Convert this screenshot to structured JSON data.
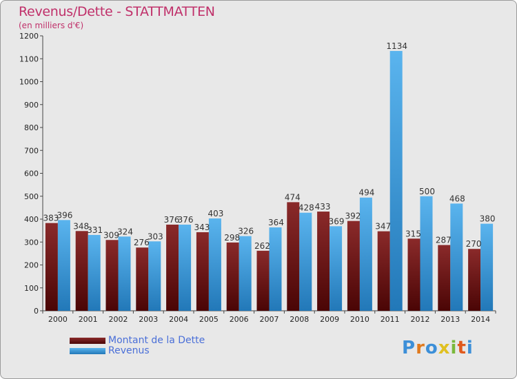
{
  "title": "Revenus/Dette - STATTMATTEN",
  "subtitle": "(en milliers d'€)",
  "logo_text": "Proxiti",
  "legend": [
    {
      "label": "Montant de la Dette",
      "color": "#7a1a1a"
    },
    {
      "label": "Revenus",
      "color": "#3c9ad8"
    }
  ],
  "chart_data": {
    "type": "bar",
    "title": "Revenus/Dette - STATTMATTEN",
    "ylabel": "(en milliers d'€)",
    "xlabel": "",
    "categories": [
      "2000",
      "2001",
      "2002",
      "2003",
      "2004",
      "2005",
      "2006",
      "2007",
      "2008",
      "2009",
      "2010",
      "2011",
      "2012",
      "2013",
      "2014"
    ],
    "series": [
      {
        "name": "Montant de la Dette",
        "color": "#7a1a1a",
        "values": [
          383,
          348,
          309,
          276,
          376,
          343,
          298,
          262,
          474,
          433,
          392,
          347,
          315,
          287,
          270
        ]
      },
      {
        "name": "Revenus",
        "color": "#3c9ad8",
        "values": [
          396,
          331,
          324,
          303,
          376,
          403,
          326,
          364,
          428,
          369,
          494,
          1134,
          500,
          468,
          380
        ]
      }
    ],
    "ylim": [
      0,
      1200
    ],
    "yticks": [
      0,
      100,
      200,
      300,
      400,
      500,
      600,
      700,
      800,
      900,
      1000,
      1100,
      1200
    ],
    "grid": false,
    "legend_position": "bottom-left"
  }
}
